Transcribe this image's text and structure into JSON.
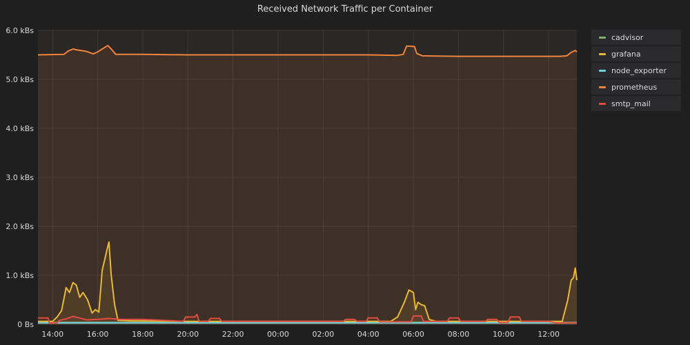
{
  "chart_data": {
    "type": "area",
    "title": "Received Network Traffic per Container",
    "ylim": [
      0,
      6000
    ],
    "y_ticks": [
      {
        "value": 0,
        "label": "0 Bs"
      },
      {
        "value": 1000,
        "label": "1.0 kBs"
      },
      {
        "value": 2000,
        "label": "2.0 kBs"
      },
      {
        "value": 3000,
        "label": "3.0 kBs"
      },
      {
        "value": 4000,
        "label": "4.0 kBs"
      },
      {
        "value": 5000,
        "label": "5.0 kBs"
      },
      {
        "value": 6000,
        "label": "6.0 kBs"
      }
    ],
    "x_range_hours": [
      13.35,
      37.25
    ],
    "x_ticks": [
      {
        "hour": 14,
        "label": "14:00"
      },
      {
        "hour": 16,
        "label": "16:00"
      },
      {
        "hour": 18,
        "label": "18:00"
      },
      {
        "hour": 20,
        "label": "20:00"
      },
      {
        "hour": 22,
        "label": "22:00"
      },
      {
        "hour": 24,
        "label": "00:00"
      },
      {
        "hour": 26,
        "label": "02:00"
      },
      {
        "hour": 28,
        "label": "04:00"
      },
      {
        "hour": 30,
        "label": "06:00"
      },
      {
        "hour": 32,
        "label": "08:00"
      },
      {
        "hour": 34,
        "label": "10:00"
      },
      {
        "hour": 36,
        "label": "12:00"
      }
    ],
    "grid": true,
    "legend_position": "right",
    "series": [
      {
        "name": "cadvisor",
        "color": "#7eb26d",
        "points": [
          [
            13.35,
            40
          ],
          [
            16,
            40
          ],
          [
            20,
            40
          ],
          [
            24,
            40
          ],
          [
            28,
            40
          ],
          [
            32,
            40
          ],
          [
            37.25,
            40
          ]
        ]
      },
      {
        "name": "grafana",
        "color": "#eab839",
        "points": [
          [
            13.35,
            60
          ],
          [
            14.0,
            60
          ],
          [
            14.2,
            150
          ],
          [
            14.4,
            280
          ],
          [
            14.6,
            750
          ],
          [
            14.75,
            650
          ],
          [
            14.9,
            850
          ],
          [
            15.05,
            800
          ],
          [
            15.2,
            550
          ],
          [
            15.35,
            650
          ],
          [
            15.55,
            500
          ],
          [
            15.75,
            230
          ],
          [
            15.9,
            300
          ],
          [
            16.05,
            250
          ],
          [
            16.2,
            1100
          ],
          [
            16.4,
            1500
          ],
          [
            16.5,
            1680
          ],
          [
            16.6,
            1000
          ],
          [
            16.75,
            400
          ],
          [
            16.9,
            80
          ],
          [
            17.5,
            70
          ],
          [
            20,
            60
          ],
          [
            24,
            60
          ],
          [
            28,
            60
          ],
          [
            29.0,
            60
          ],
          [
            29.3,
            150
          ],
          [
            29.6,
            450
          ],
          [
            29.8,
            700
          ],
          [
            30.0,
            650
          ],
          [
            30.1,
            300
          ],
          [
            30.2,
            450
          ],
          [
            30.35,
            400
          ],
          [
            30.5,
            380
          ],
          [
            30.7,
            100
          ],
          [
            31.0,
            60
          ],
          [
            34,
            60
          ],
          [
            36.6,
            60
          ],
          [
            36.85,
            500
          ],
          [
            37.0,
            900
          ],
          [
            37.1,
            950
          ],
          [
            37.18,
            1150
          ],
          [
            37.25,
            900
          ]
        ]
      },
      {
        "name": "node_exporter",
        "color": "#6ed0e0",
        "points": [
          [
            13.35,
            30
          ],
          [
            16,
            30
          ],
          [
            20,
            30
          ],
          [
            24,
            30
          ],
          [
            28,
            30
          ],
          [
            32,
            30
          ],
          [
            37.25,
            30
          ]
        ]
      },
      {
        "name": "prometheus",
        "color": "#ef843c",
        "points": [
          [
            13.35,
            5500
          ],
          [
            14.5,
            5510
          ],
          [
            14.7,
            5580
          ],
          [
            14.9,
            5620
          ],
          [
            15.1,
            5600
          ],
          [
            15.5,
            5570
          ],
          [
            15.8,
            5520
          ],
          [
            16.0,
            5560
          ],
          [
            16.2,
            5620
          ],
          [
            16.45,
            5690
          ],
          [
            16.6,
            5620
          ],
          [
            16.8,
            5510
          ],
          [
            18,
            5510
          ],
          [
            20,
            5500
          ],
          [
            24,
            5500
          ],
          [
            28,
            5500
          ],
          [
            29.3,
            5490
          ],
          [
            29.55,
            5510
          ],
          [
            29.7,
            5680
          ],
          [
            30.05,
            5670
          ],
          [
            30.15,
            5530
          ],
          [
            30.4,
            5480
          ],
          [
            32,
            5470
          ],
          [
            34,
            5470
          ],
          [
            36.5,
            5470
          ],
          [
            36.8,
            5480
          ],
          [
            37.0,
            5550
          ],
          [
            37.18,
            5590
          ],
          [
            37.25,
            5560
          ]
        ]
      },
      {
        "name": "smtp_mail",
        "color": "#e24d42",
        "points": [
          [
            13.35,
            130
          ],
          [
            13.8,
            130
          ],
          [
            13.85,
            30
          ],
          [
            14.2,
            30
          ],
          [
            14.3,
            80
          ],
          [
            14.6,
            110
          ],
          [
            14.9,
            160
          ],
          [
            15.2,
            130
          ],
          [
            15.5,
            90
          ],
          [
            16.0,
            100
          ],
          [
            16.5,
            120
          ],
          [
            17.0,
            100
          ],
          [
            18.0,
            100
          ],
          [
            19.8,
            60
          ],
          [
            19.9,
            150
          ],
          [
            20.3,
            150
          ],
          [
            20.4,
            200
          ],
          [
            20.5,
            60
          ],
          [
            20.9,
            60
          ],
          [
            21.0,
            120
          ],
          [
            21.4,
            120
          ],
          [
            21.5,
            60
          ],
          [
            24,
            60
          ],
          [
            26.9,
            60
          ],
          [
            27.0,
            100
          ],
          [
            27.4,
            100
          ],
          [
            27.5,
            60
          ],
          [
            27.9,
            60
          ],
          [
            28.0,
            130
          ],
          [
            28.4,
            130
          ],
          [
            28.5,
            50
          ],
          [
            29.9,
            50
          ],
          [
            30.0,
            170
          ],
          [
            30.35,
            170
          ],
          [
            30.45,
            60
          ],
          [
            31.0,
            60
          ],
          [
            31.5,
            60
          ],
          [
            31.6,
            130
          ],
          [
            32.0,
            130
          ],
          [
            32.1,
            60
          ],
          [
            32.7,
            60
          ],
          [
            33.2,
            60
          ],
          [
            33.3,
            100
          ],
          [
            33.7,
            100
          ],
          [
            33.8,
            40
          ],
          [
            34.2,
            40
          ],
          [
            34.3,
            150
          ],
          [
            34.7,
            150
          ],
          [
            34.8,
            60
          ],
          [
            36.0,
            60
          ],
          [
            36.3,
            30
          ],
          [
            37.25,
            30
          ]
        ]
      }
    ]
  }
}
